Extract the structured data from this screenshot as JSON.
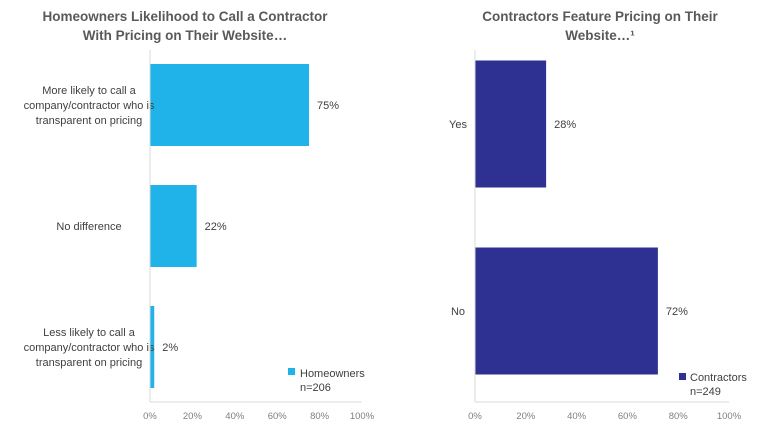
{
  "chart_data": [
    {
      "type": "bar",
      "orientation": "horizontal",
      "title": [
        "Homeowners Likelihood to Call a Contractor",
        "With Pricing on Their Website…"
      ],
      "categories": [
        [
          "More likely to call a",
          "company/contractor who is",
          "transparent on pricing"
        ],
        [
          "No difference"
        ],
        [
          "Less likely to call a",
          "company/contractor who is",
          "transparent on pricing"
        ]
      ],
      "series": [
        {
          "name": "Homeowners",
          "values": [
            75,
            22,
            2
          ],
          "color": "#1fb3ea"
        }
      ],
      "value_labels": [
        "75%",
        "22%",
        "2%"
      ],
      "xlim": [
        0,
        100
      ],
      "xticks": [
        "0%",
        "20%",
        "40%",
        "60%",
        "80%",
        "100%"
      ],
      "legend": {
        "label": "Homeowners",
        "sublabel": "n=206",
        "position": "bottom-right"
      },
      "grid": false
    },
    {
      "type": "bar",
      "orientation": "horizontal",
      "title": [
        "Contractors Feature Pricing on Their",
        "Website…¹"
      ],
      "categories": [
        [
          "Yes"
        ],
        [
          "No"
        ]
      ],
      "series": [
        {
          "name": "Contractors",
          "values": [
            28,
            72
          ],
          "color": "#2e3192"
        }
      ],
      "value_labels": [
        "28%",
        "72%"
      ],
      "xlim": [
        0,
        100
      ],
      "xticks": [
        "0%",
        "20%",
        "40%",
        "60%",
        "80%",
        "100%"
      ],
      "legend": {
        "label": "Contractors",
        "sublabel": "n=249",
        "position": "bottom-right"
      },
      "grid": false
    }
  ]
}
